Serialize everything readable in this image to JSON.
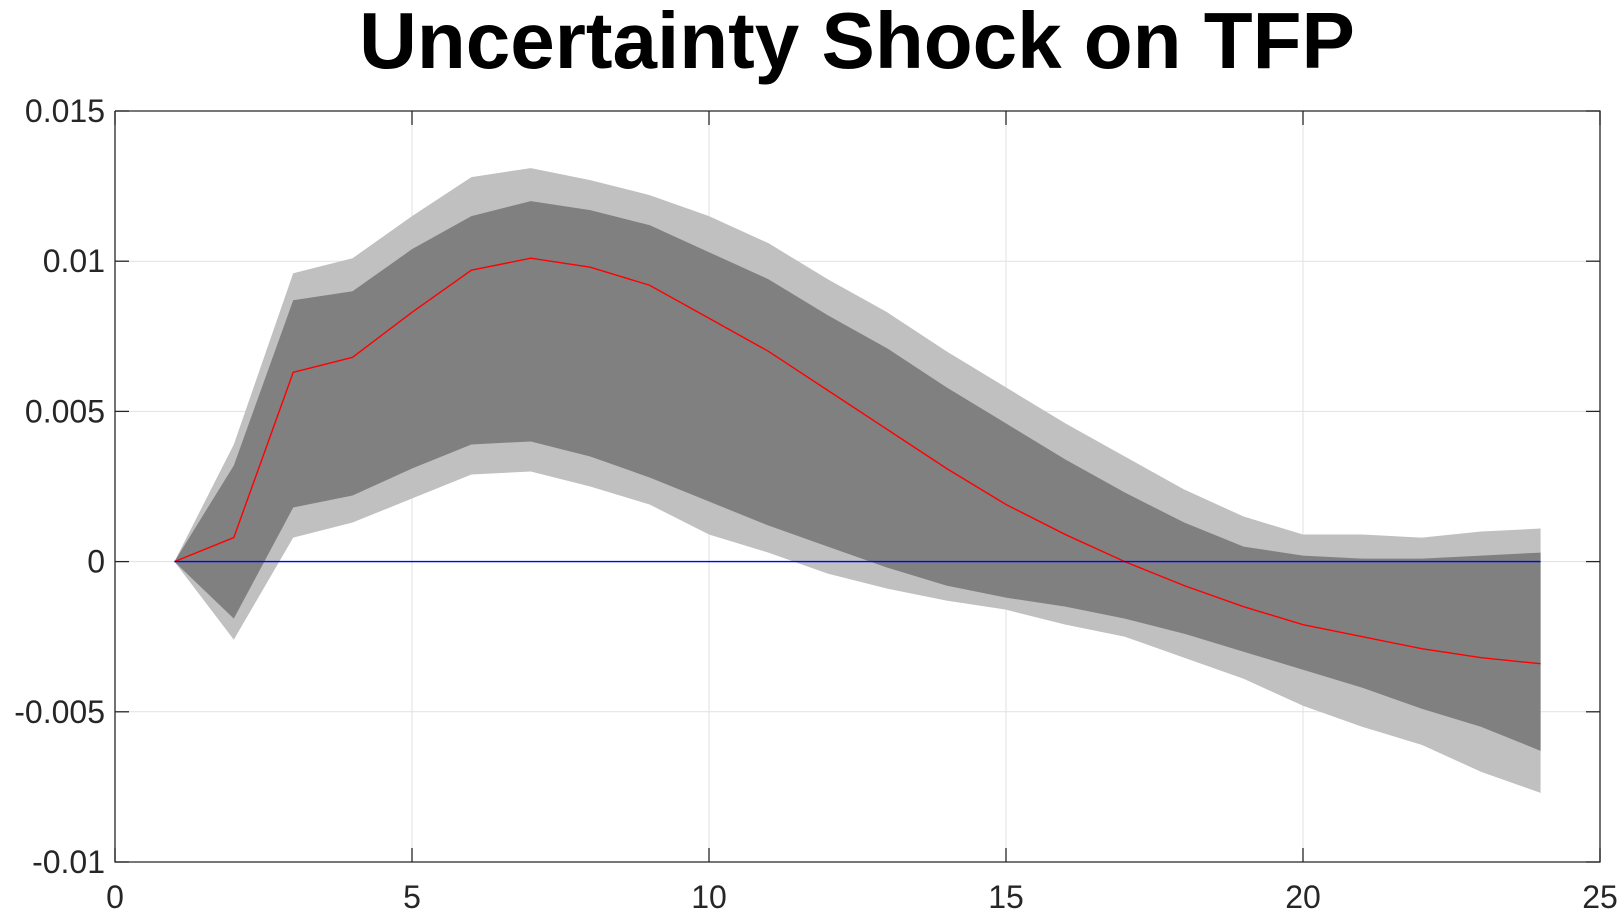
{
  "chart_data": {
    "type": "area",
    "title": "Uncertainty Shock on TFP",
    "xlabel": "",
    "ylabel": "",
    "xlim": [
      0,
      25
    ],
    "ylim": [
      -0.01,
      0.015
    ],
    "xticks": [
      0,
      5,
      10,
      15,
      20,
      25
    ],
    "xtick_labels": [
      "0",
      "5",
      "10",
      "15",
      "20",
      "25"
    ],
    "yticks": [
      -0.01,
      -0.005,
      0,
      0.005,
      0.01,
      0.015
    ],
    "ytick_labels": [
      "-0.01",
      "-0.005",
      "0",
      "0.005",
      "0.01",
      "0.015"
    ],
    "grid": true,
    "x": [
      1,
      2,
      3,
      4,
      5,
      6,
      7,
      8,
      9,
      10,
      11,
      12,
      13,
      14,
      15,
      16,
      17,
      18,
      19,
      20,
      21,
      22,
      23,
      24
    ],
    "bands": [
      {
        "color": "#c0c0c0",
        "upper": [
          0,
          0.0039,
          0.0096,
          0.0101,
          0.0115,
          0.0128,
          0.0131,
          0.0127,
          0.0122,
          0.0115,
          0.0106,
          0.0094,
          0.0083,
          0.007,
          0.0058,
          0.0046,
          0.0035,
          0.0024,
          0.0015,
          0.0009,
          0.0009,
          0.0008,
          0.001,
          0.0011
        ],
        "lower": [
          0,
          -0.0026,
          0.0008,
          0.0013,
          0.0021,
          0.0029,
          0.003,
          0.0025,
          0.0019,
          0.0009,
          0.0003,
          -0.0004,
          -0.0009,
          -0.0013,
          -0.0016,
          -0.0021,
          -0.0025,
          -0.0032,
          -0.0039,
          -0.0048,
          -0.0055,
          -0.0061,
          -0.007,
          -0.0077
        ]
      },
      {
        "color": "#808080",
        "upper": [
          0,
          0.0032,
          0.0087,
          0.009,
          0.0104,
          0.0115,
          0.012,
          0.0117,
          0.0112,
          0.0103,
          0.0094,
          0.0082,
          0.0071,
          0.0058,
          0.0046,
          0.0034,
          0.0023,
          0.0013,
          0.0005,
          0.0002,
          0.0001,
          0.0001,
          0.0002,
          0.0003
        ],
        "lower": [
          0,
          -0.0019,
          0.0018,
          0.0022,
          0.0031,
          0.0039,
          0.004,
          0.0035,
          0.0028,
          0.002,
          0.0012,
          0.0005,
          -0.0002,
          -0.0008,
          -0.0012,
          -0.0015,
          -0.0019,
          -0.0024,
          -0.003,
          -0.0036,
          -0.0042,
          -0.0049,
          -0.0055,
          -0.0063
        ]
      }
    ],
    "series": [
      {
        "color": "#ff0000",
        "values": [
          0,
          0.0008,
          0.0063,
          0.0068,
          0.0083,
          0.0097,
          0.0101,
          0.0098,
          0.0092,
          0.0081,
          0.007,
          0.0057,
          0.0044,
          0.0031,
          0.0019,
          0.0009,
          0.0,
          -0.0008,
          -0.0015,
          -0.0021,
          -0.0025,
          -0.0029,
          -0.0032,
          -0.0034
        ]
      },
      {
        "color": "#0000ff",
        "values": [
          0,
          0,
          0,
          0,
          0,
          0,
          0,
          0,
          0,
          0,
          0,
          0,
          0,
          0,
          0,
          0,
          0,
          0,
          0,
          0,
          0,
          0,
          0,
          0
        ]
      }
    ]
  }
}
